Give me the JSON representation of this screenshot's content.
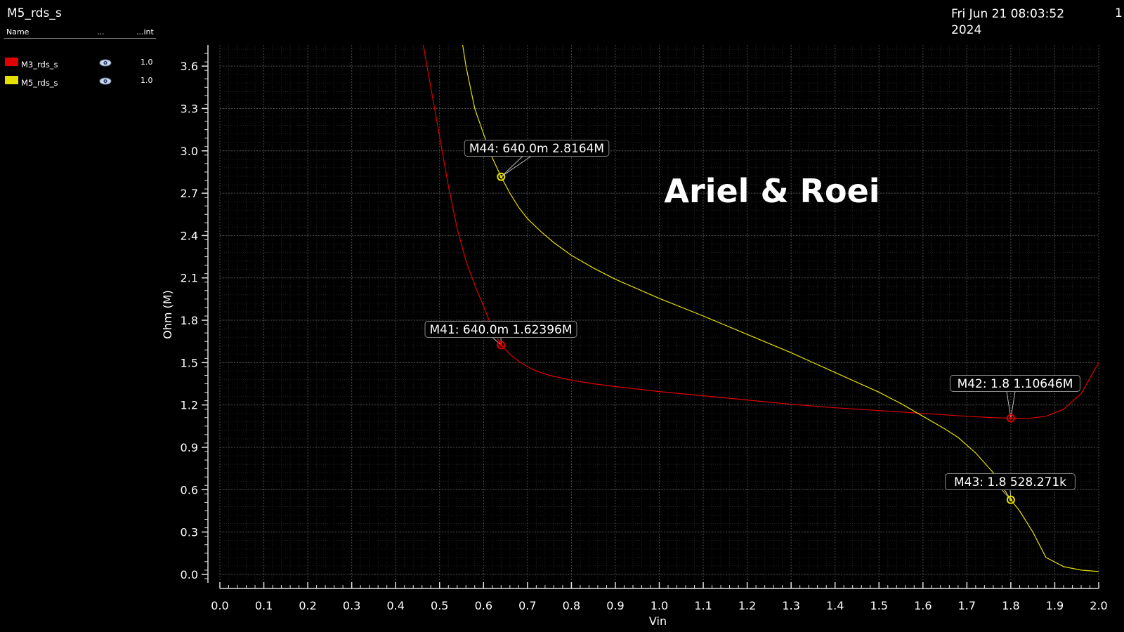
{
  "header": {
    "title": "M5_rds_s",
    "datetime": "Fri Jun 21 08:03:52 2024",
    "page": "1"
  },
  "legend": {
    "col_name": "Name",
    "col_dots": "...",
    "col_int": "...int",
    "items": [
      {
        "name": "M3_rds_s",
        "color": "#e00000",
        "value": "1.0",
        "icon": "eye-icon"
      },
      {
        "name": "M5_rds_s",
        "color": "#e5e000",
        "value": "1.0",
        "icon": "eye-icon"
      }
    ]
  },
  "chart_data": {
    "type": "line",
    "xlabel": "Vin",
    "ylabel": "Ohm (M)",
    "xlim": [
      0.0,
      2.0
    ],
    "ylim": [
      -0.05,
      3.75
    ],
    "xticks": [
      "0.0",
      "0.1",
      "0.2",
      "0.3",
      "0.4",
      "0.5",
      "0.6",
      "0.7",
      "0.8",
      "0.9",
      "1.0",
      "1.1",
      "1.2",
      "1.3",
      "1.4",
      "1.5",
      "1.6",
      "1.7",
      "1.8",
      "1.9",
      "2.0"
    ],
    "yticks": [
      "0.0",
      "0.3",
      "0.6",
      "0.9",
      "1.2",
      "1.5",
      "1.8",
      "2.1",
      "2.4",
      "2.7",
      "3.0",
      "3.3",
      "3.6"
    ],
    "grid": true,
    "annotation": "Ariel & Roei",
    "series": [
      {
        "name": "M3_rds_s",
        "color": "#e00000",
        "x": [
          0.46,
          0.48,
          0.5,
          0.52,
          0.54,
          0.56,
          0.58,
          0.6,
          0.62,
          0.64,
          0.66,
          0.68,
          0.7,
          0.72,
          0.75,
          0.8,
          0.85,
          0.9,
          1.0,
          1.1,
          1.2,
          1.3,
          1.4,
          1.5,
          1.6,
          1.7,
          1.76,
          1.8,
          1.84,
          1.88,
          1.92,
          1.96,
          2.0
        ],
        "y": [
          3.8,
          3.45,
          3.1,
          2.75,
          2.45,
          2.22,
          2.05,
          1.9,
          1.74,
          1.62396,
          1.56,
          1.51,
          1.47,
          1.44,
          1.41,
          1.375,
          1.35,
          1.33,
          1.295,
          1.265,
          1.235,
          1.205,
          1.18,
          1.16,
          1.14,
          1.12,
          1.11,
          1.10646,
          1.105,
          1.12,
          1.17,
          1.28,
          1.5
        ]
      },
      {
        "name": "M5_rds_s",
        "color": "#e5e000",
        "x": [
          0.55,
          0.56,
          0.57,
          0.58,
          0.6,
          0.62,
          0.64,
          0.66,
          0.68,
          0.7,
          0.73,
          0.76,
          0.8,
          0.85,
          0.9,
          1.0,
          1.1,
          1.2,
          1.3,
          1.4,
          1.5,
          1.55,
          1.6,
          1.65,
          1.68,
          1.72,
          1.76,
          1.8,
          1.82,
          1.85,
          1.88,
          1.92,
          1.96,
          2.0
        ],
        "y": [
          3.8,
          3.6,
          3.45,
          3.3,
          3.12,
          2.95,
          2.8164,
          2.7,
          2.6,
          2.52,
          2.43,
          2.35,
          2.26,
          2.17,
          2.09,
          1.955,
          1.83,
          1.7,
          1.57,
          1.43,
          1.29,
          1.21,
          1.12,
          1.03,
          0.97,
          0.86,
          0.72,
          0.528271,
          0.45,
          0.3,
          0.12,
          0.055,
          0.03,
          0.02
        ]
      }
    ],
    "markers": [
      {
        "label": "M44: 640.0m 2.8164M",
        "series": "M5_rds_s",
        "x": 0.64,
        "y": 2.8164
      },
      {
        "label": "M41: 640.0m 1.62396M",
        "series": "M3_rds_s",
        "x": 0.64,
        "y": 1.62396
      },
      {
        "label": "M42: 1.8 1.10646M",
        "series": "M3_rds_s",
        "x": 1.8,
        "y": 1.10646
      },
      {
        "label": "M43: 1.8 528.271k",
        "series": "M5_rds_s",
        "x": 1.8,
        "y": 0.528271
      }
    ]
  }
}
